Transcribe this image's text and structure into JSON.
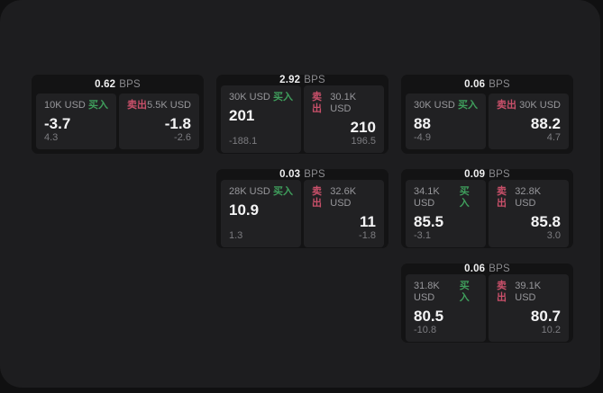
{
  "labels": {
    "bps_unit": "BPS",
    "buy": "买入",
    "sell": "卖出"
  },
  "colors": {
    "buy": "#3f9e5c",
    "sell": "#c9506a",
    "panel_bg": "#1d1d1f",
    "card_bg": "#131314",
    "tile_bg": "#212123"
  },
  "cards": [
    {
      "bps": "0.62",
      "buy": {
        "amount": "10K USD",
        "price": "-3.7",
        "pnl": "4.3"
      },
      "sell": {
        "amount": "5.5K USD",
        "price": "-1.8",
        "pnl": "-2.6"
      }
    },
    {
      "bps": "2.92",
      "buy": {
        "amount": "30K USD",
        "price": "201",
        "pnl": "-188.1"
      },
      "sell": {
        "amount": "30.1K USD",
        "price": "210",
        "pnl": "196.5"
      }
    },
    {
      "bps": "0.06",
      "buy": {
        "amount": "30K USD",
        "price": "88",
        "pnl": "-4.9"
      },
      "sell": {
        "amount": "30K USD",
        "price": "88.2",
        "pnl": "4.7"
      }
    },
    {
      "bps": "0.03",
      "buy": {
        "amount": "28K USD",
        "price": "10.9",
        "pnl": "1.3"
      },
      "sell": {
        "amount": "32.6K USD",
        "price": "11",
        "pnl": "-1.8"
      }
    },
    {
      "bps": "0.09",
      "buy": {
        "amount": "34.1K USD",
        "price": "85.5",
        "pnl": "-3.1"
      },
      "sell": {
        "amount": "32.8K USD",
        "price": "85.8",
        "pnl": "3.0"
      }
    },
    {
      "bps": "0.06",
      "buy": {
        "amount": "31.8K USD",
        "price": "80.5",
        "pnl": "-10.8"
      },
      "sell": {
        "amount": "39.1K USD",
        "price": "80.7",
        "pnl": "10.2"
      }
    }
  ]
}
